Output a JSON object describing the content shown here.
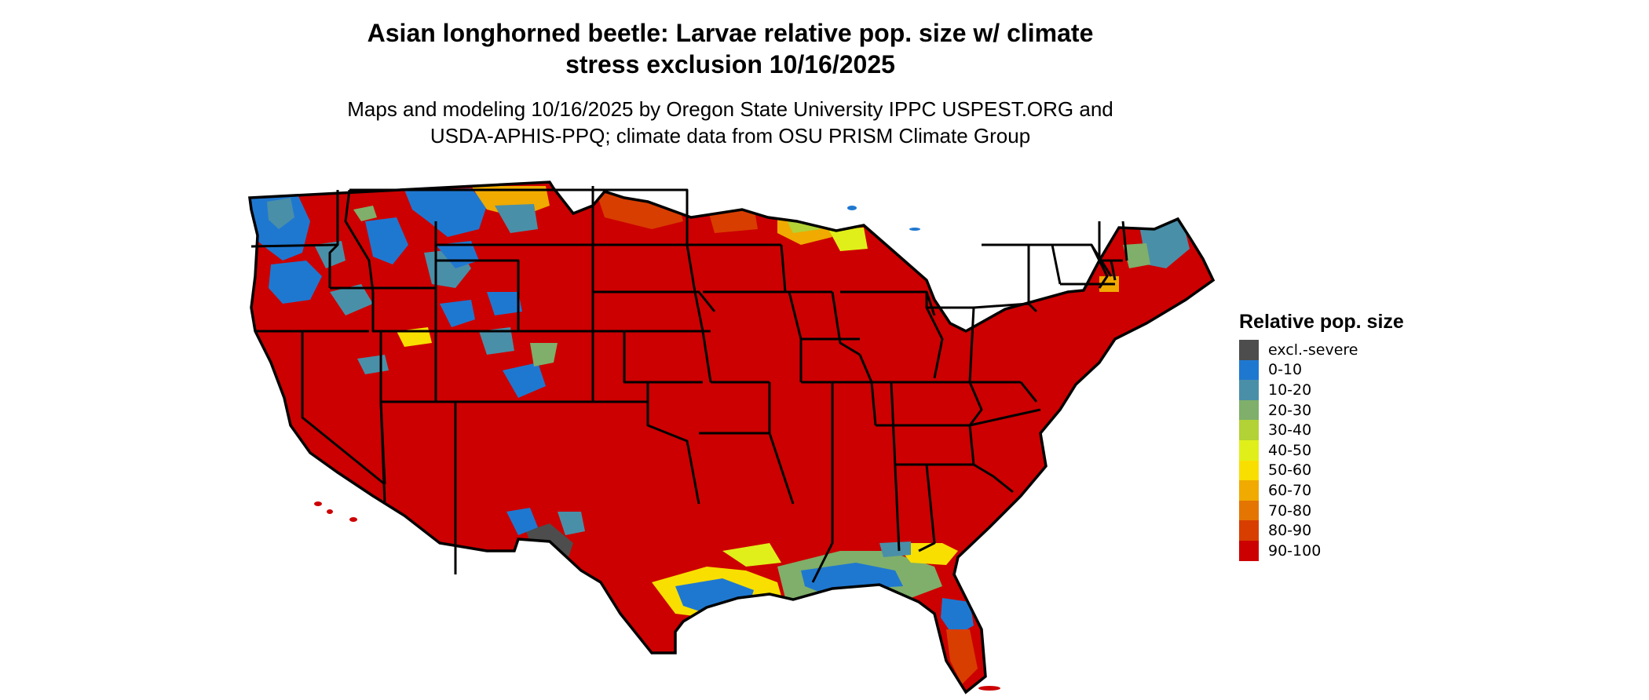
{
  "title_line1": "Asian longhorned beetle: Larvae relative pop. size w/ climate",
  "title_line2": "stress exclusion 10/16/2025",
  "subtitle_line1": "Maps and modeling 10/16/2025 by Oregon State University IPPC USPEST.ORG and",
  "subtitle_line2": "USDA-APHIS-PPQ; climate data from OSU PRISM Climate Group",
  "legend": {
    "title": "Relative pop. size",
    "items": [
      {
        "label": "excl.-severe",
        "color": "#4d4d4d"
      },
      {
        "label": "0-10",
        "color": "#1f78d0"
      },
      {
        "label": "10-20",
        "color": "#4a8fa8"
      },
      {
        "label": "20-30",
        "color": "#7faf6a"
      },
      {
        "label": "30-40",
        "color": "#b2d235"
      },
      {
        "label": "40-50",
        "color": "#e0ef1a"
      },
      {
        "label": "50-60",
        "color": "#f8df00"
      },
      {
        "label": "60-70",
        "color": "#f0aa00"
      },
      {
        "label": "70-80",
        "color": "#e47500"
      },
      {
        "label": "80-90",
        "color": "#d83e00"
      },
      {
        "label": "90-100",
        "color": "#cc0000"
      }
    ]
  }
}
